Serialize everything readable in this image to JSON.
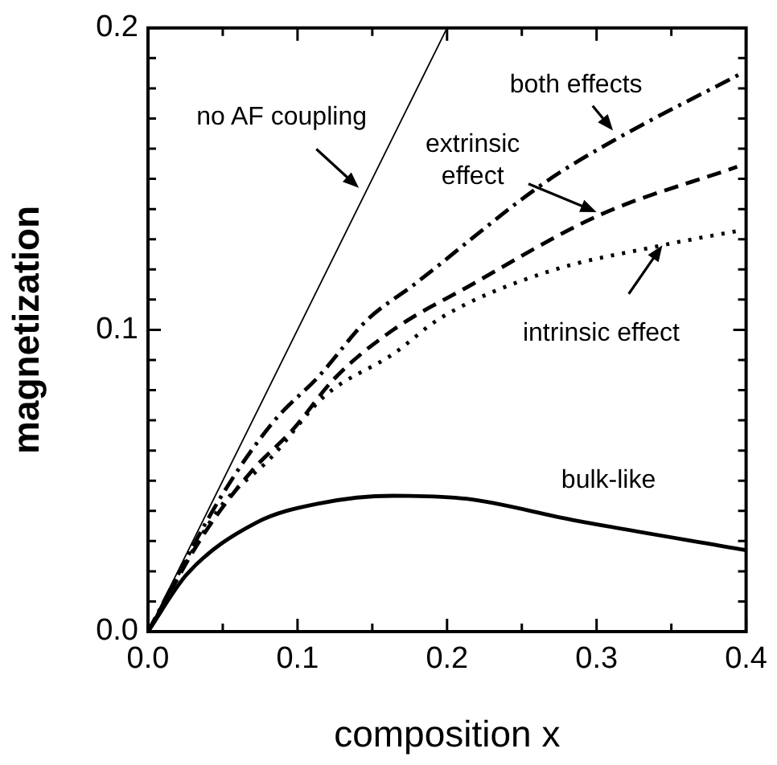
{
  "chart_data": {
    "type": "line",
    "xlabel": "composition x",
    "ylabel": "magnetization",
    "xlim": [
      0,
      0.4
    ],
    "ylim": [
      0,
      0.2
    ],
    "xticks": [
      {
        "value": 0,
        "label": "0.0"
      },
      {
        "value": 0.05,
        "label": null
      },
      0.1,
      {
        "value": 0.15,
        "label": null
      },
      0.2,
      {
        "value": 0.25,
        "label": null
      },
      0.3,
      {
        "value": 0.35,
        "label": null
      },
      0.4
    ],
    "yticks": [
      {
        "value": 0,
        "label": "0.0"
      },
      {
        "value": 0.01,
        "label": null
      },
      {
        "value": 0.02,
        "label": null
      },
      {
        "value": 0.03,
        "label": null
      },
      {
        "value": 0.04,
        "label": null
      },
      {
        "value": 0.05,
        "label": null
      },
      {
        "value": 0.06,
        "label": null
      },
      {
        "value": 0.07,
        "label": null
      },
      {
        "value": 0.08,
        "label": null
      },
      {
        "value": 0.09,
        "label": null
      },
      0.1,
      {
        "value": 0.11,
        "label": null
      },
      {
        "value": 0.12,
        "label": null
      },
      {
        "value": 0.13,
        "label": null
      },
      {
        "value": 0.14,
        "label": null
      },
      {
        "value": 0.15,
        "label": null
      },
      {
        "value": 0.16,
        "label": null
      },
      {
        "value": 0.17,
        "label": null
      },
      {
        "value": 0.18,
        "label": null
      },
      {
        "value": 0.19,
        "label": null
      },
      0.2
    ],
    "grid": false,
    "legend": false,
    "marker": "none",
    "series": [
      {
        "color": "#000000",
        "line_style": "solid",
        "x": [
          0,
          0.2
        ],
        "values": [
          0,
          0.2
        ]
      },
      {
        "color": "#000000",
        "line_style": "dashdot",
        "x": [
          0,
          0.048,
          0.083,
          0.115,
          0.146,
          0.178,
          0.266,
          0.3125,
          0.397
        ],
        "values": [
          0,
          0.044,
          0.069,
          0.085,
          0.103,
          0.115,
          0.149,
          0.163,
          0.185
        ]
      },
      {
        "color": "#000000",
        "line_style": "dashed",
        "x": [
          0,
          0.037,
          0.069,
          0.097,
          0.125,
          0.164,
          0.213,
          0.302,
          0.394
        ],
        "values": [
          0,
          0.032,
          0.053,
          0.067,
          0.084,
          0.1,
          0.114,
          0.138,
          0.154
        ]
      },
      {
        "color": "#000000",
        "line_style": "dotted",
        "x": [
          0,
          0.048,
          0.083,
          0.118,
          0.164,
          0.196,
          0.266,
          0.344,
          0.397
        ],
        "values": [
          0,
          0.041,
          0.058,
          0.078,
          0.092,
          0.104,
          0.119,
          0.128,
          0.133
        ]
      },
      {
        "color": "#000000",
        "line_style": "solid",
        "x": [
          0,
          0.026,
          0.072,
          0.115,
          0.164,
          0.213,
          0.284,
          0.4
        ],
        "values": [
          0,
          0.019,
          0.036,
          0.0425,
          0.045,
          0.044,
          0.037,
          0.027
        ]
      }
    ],
    "annotations": [
      {
        "text": "no AF coupling",
        "x": 0.141,
        "y": 0.147
      },
      {
        "text": "both effects",
        "x": 0.311,
        "y": 0.166
      },
      {
        "text": "extrinsic effect",
        "x": 0.3,
        "y": 0.139
      },
      {
        "text": "intrinsic effect",
        "x": 0.344,
        "y": 0.128
      },
      "bulk-like"
    ]
  }
}
